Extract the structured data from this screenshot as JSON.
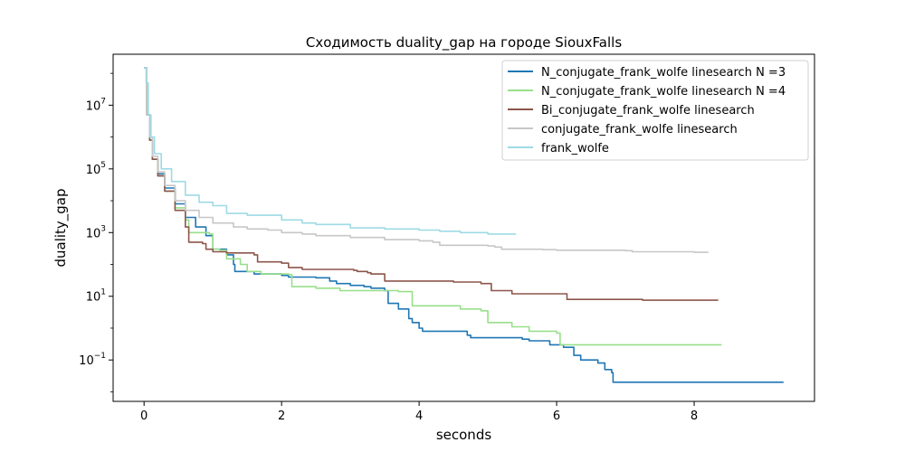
{
  "chart_data": {
    "type": "line",
    "title": "Сходимость duality_gap на городе SiouxFalls",
    "xlabel": "seconds",
    "ylabel": "duality_gap",
    "xlim": [
      -0.45,
      9.75
    ],
    "ylim_log10": [
      -2.3,
      8.6
    ],
    "y_scale": "log",
    "x_ticks": [
      0,
      2,
      4,
      6,
      8
    ],
    "x_tick_labels": [
      "0",
      "2",
      "4",
      "6",
      "8"
    ],
    "y_ticks_log10": [
      -1,
      1,
      3,
      5,
      7
    ],
    "y_tick_labels": [
      {
        "base": "10",
        "exp": "−1"
      },
      {
        "base": "10",
        "exp": "1"
      },
      {
        "base": "10",
        "exp": "3"
      },
      {
        "base": "10",
        "exp": "5"
      },
      {
        "base": "10",
        "exp": "7"
      }
    ],
    "legend_position": "top-right",
    "series": [
      {
        "name": "N_conjugate_frank_wolfe linesearch N =3",
        "color": "#1f77b4",
        "points": [
          [
            0.0,
            150000000.0
          ],
          [
            0.04,
            5000000.0
          ],
          [
            0.08,
            800000.0
          ],
          [
            0.12,
            200000.0
          ],
          [
            0.2,
            70000.0
          ],
          [
            0.3,
            25000.0
          ],
          [
            0.45,
            8000.0
          ],
          [
            0.6,
            3000.0
          ],
          [
            0.75,
            1500.0
          ],
          [
            0.9,
            800
          ],
          [
            1.0,
            300
          ],
          [
            1.2,
            200
          ],
          [
            1.3,
            100
          ],
          [
            1.32,
            60
          ],
          [
            1.6,
            50
          ],
          [
            2.0,
            45
          ],
          [
            2.1,
            40
          ],
          [
            2.5,
            38
          ],
          [
            2.7,
            30
          ],
          [
            2.8,
            25
          ],
          [
            3.0,
            22
          ],
          [
            3.2,
            20
          ],
          [
            3.3,
            18
          ],
          [
            3.5,
            15
          ],
          [
            3.55,
            6
          ],
          [
            3.7,
            4
          ],
          [
            3.85,
            2
          ],
          [
            3.9,
            1.5
          ],
          [
            4.0,
            1.0
          ],
          [
            4.05,
            0.8
          ],
          [
            4.7,
            0.6
          ],
          [
            4.75,
            0.5
          ],
          [
            5.5,
            0.45
          ],
          [
            5.6,
            0.4
          ],
          [
            5.9,
            0.3
          ],
          [
            6.1,
            0.25
          ],
          [
            6.25,
            0.14
          ],
          [
            6.35,
            0.1
          ],
          [
            6.6,
            0.08
          ],
          [
            6.7,
            0.05
          ],
          [
            6.8,
            0.04
          ],
          [
            6.82,
            0.02
          ],
          [
            9.3,
            0.02
          ]
        ]
      },
      {
        "name": "N_conjugate_frank_wolfe linesearch N =4",
        "color": "#98df8a",
        "points": [
          [
            0.0,
            150000000.0
          ],
          [
            0.04,
            5000000.0
          ],
          [
            0.08,
            800000.0
          ],
          [
            0.12,
            200000.0
          ],
          [
            0.2,
            60000.0
          ],
          [
            0.3,
            20000.0
          ],
          [
            0.45,
            6000.0
          ],
          [
            0.6,
            2500.0
          ],
          [
            0.65,
            1000.0
          ],
          [
            0.95,
            900
          ],
          [
            1.0,
            300
          ],
          [
            1.1,
            280
          ],
          [
            1.2,
            150
          ],
          [
            1.4,
            100
          ],
          [
            1.5,
            60
          ],
          [
            1.7,
            50
          ],
          [
            2.1,
            48
          ],
          [
            2.15,
            20
          ],
          [
            2.5,
            18
          ],
          [
            2.85,
            15
          ],
          [
            3.7,
            14
          ],
          [
            3.9,
            5
          ],
          [
            4.6,
            4
          ],
          [
            4.9,
            3.5
          ],
          [
            5.0,
            1.5
          ],
          [
            5.35,
            1.1
          ],
          [
            5.6,
            0.8
          ],
          [
            6.0,
            0.7
          ],
          [
            6.05,
            0.3
          ],
          [
            8.4,
            0.3
          ]
        ]
      },
      {
        "name": "Bi_conjugate_frank_wolfe linesearch",
        "color": "#8c564b",
        "points": [
          [
            0.0,
            150000000.0
          ],
          [
            0.04,
            5000000.0
          ],
          [
            0.08,
            800000.0
          ],
          [
            0.12,
            200000.0
          ],
          [
            0.2,
            60000.0
          ],
          [
            0.3,
            20000.0
          ],
          [
            0.45,
            5000.0
          ],
          [
            0.6,
            1500.0
          ],
          [
            0.65,
            500
          ],
          [
            0.85,
            450
          ],
          [
            0.9,
            300
          ],
          [
            1.0,
            250
          ],
          [
            1.2,
            230
          ],
          [
            1.6,
            200
          ],
          [
            1.65,
            120
          ],
          [
            2.0,
            110
          ],
          [
            2.1,
            80
          ],
          [
            2.3,
            70
          ],
          [
            2.8,
            65
          ],
          [
            3.0,
            60
          ],
          [
            3.05,
            55
          ],
          [
            3.05,
            55
          ],
          [
            3.1,
            55
          ],
          [
            3.2,
            50
          ],
          [
            3.3,
            60
          ],
          [
            3.1,
            60
          ],
          [
            3.3,
            60
          ],
          [
            3.05,
            60
          ],
          [
            3.25,
            60
          ]
        ],
        "points_clean": [
          [
            0.0,
            150000000.0
          ],
          [
            0.04,
            5000000.0
          ],
          [
            0.08,
            800000.0
          ],
          [
            0.12,
            200000.0
          ],
          [
            0.2,
            60000.0
          ],
          [
            0.3,
            20000.0
          ],
          [
            0.45,
            5000.0
          ],
          [
            0.6,
            1500.0
          ],
          [
            0.65,
            500
          ],
          [
            0.85,
            450
          ],
          [
            0.9,
            300
          ],
          [
            1.0,
            250
          ],
          [
            1.2,
            230
          ],
          [
            1.6,
            200
          ],
          [
            1.65,
            120
          ],
          [
            2.0,
            110
          ],
          [
            2.1,
            80
          ],
          [
            2.3,
            70
          ],
          [
            3.05,
            65
          ],
          [
            3.1,
            60
          ],
          [
            3.25,
            55
          ],
          [
            3.3,
            50
          ],
          [
            3.45,
            50
          ],
          [
            3.5,
            30
          ],
          [
            4.5,
            28
          ],
          [
            4.9,
            25
          ],
          [
            5.0,
            25
          ],
          [
            5.05,
            15
          ],
          [
            5.3,
            15
          ],
          [
            5.35,
            12
          ],
          [
            6.1,
            12
          ],
          [
            6.15,
            8
          ],
          [
            7.2,
            8
          ],
          [
            7.25,
            7.5
          ],
          [
            8.35,
            7.5
          ]
        ]
      },
      {
        "name": "conjugate_frank_wolfe linesearch",
        "color": "#c7c7c7",
        "points": [
          [
            0.0,
            150000000.0
          ],
          [
            0.04,
            5000000.0
          ],
          [
            0.08,
            1000000.0
          ],
          [
            0.12,
            250000.0
          ],
          [
            0.2,
            80000.0
          ],
          [
            0.3,
            30000.0
          ],
          [
            0.45,
            10000.0
          ],
          [
            0.6,
            5000.0
          ],
          [
            0.8,
            3000.0
          ],
          [
            1.0,
            2000.0
          ],
          [
            1.3,
            1500.0
          ],
          [
            1.5,
            1300.0
          ],
          [
            1.8,
            1200.0
          ],
          [
            2.0,
            1000.0
          ],
          [
            2.3,
            900
          ],
          [
            2.5,
            800
          ],
          [
            3.0,
            700
          ],
          [
            3.5,
            600
          ],
          [
            4.0,
            550
          ],
          [
            4.2,
            500
          ],
          [
            4.3,
            400
          ],
          [
            5.0,
            380
          ],
          [
            5.1,
            350
          ],
          [
            5.2,
            300
          ],
          [
            5.8,
            290
          ],
          [
            6.0,
            280
          ],
          [
            7.0,
            270
          ],
          [
            7.1,
            250
          ],
          [
            8.0,
            240
          ],
          [
            8.2,
            230
          ]
        ]
      },
      {
        "name": "frank_wolfe",
        "color": "#9edae5",
        "points": [
          [
            0.0,
            150000000.0
          ],
          [
            0.03,
            50000000.0
          ],
          [
            0.06,
            5000000.0
          ],
          [
            0.1,
            1000000.0
          ],
          [
            0.15,
            300000.0
          ],
          [
            0.25,
            100000.0
          ],
          [
            0.4,
            40000.0
          ],
          [
            0.6,
            15000.0
          ],
          [
            0.8,
            9000.0
          ],
          [
            1.0,
            7000.0
          ],
          [
            1.2,
            4000.0
          ],
          [
            1.5,
            3500.0
          ],
          [
            2.0,
            2500.0
          ],
          [
            2.3,
            2000.0
          ],
          [
            2.5,
            1800.0
          ],
          [
            3.0,
            1400.0
          ],
          [
            3.5,
            1300.0
          ],
          [
            4.0,
            1200.0
          ],
          [
            4.3,
            1100.0
          ],
          [
            4.6,
            1000.0
          ],
          [
            5.0,
            900
          ],
          [
            5.4,
            850
          ]
        ]
      }
    ]
  }
}
